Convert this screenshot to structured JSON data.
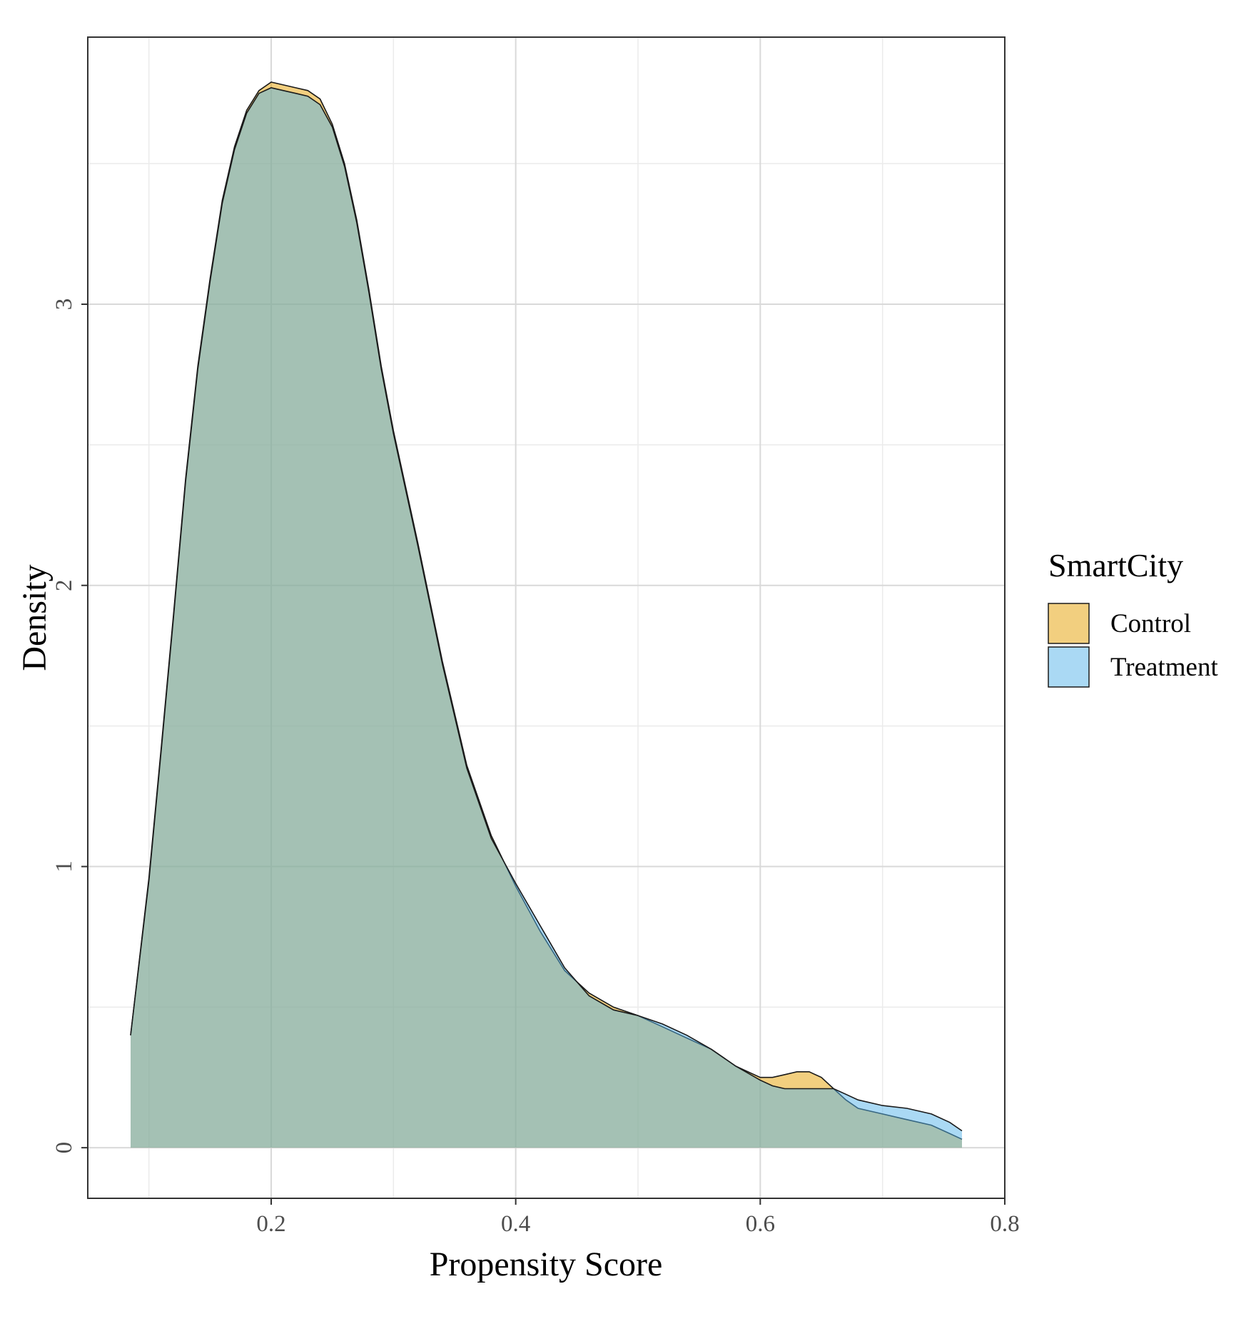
{
  "chart_data": {
    "type": "area",
    "title": "",
    "xlabel": "Propensity Score",
    "ylabel": "Density",
    "xlim": [
      0.05,
      0.8
    ],
    "ylim": [
      -0.18,
      3.95
    ],
    "x_ticks": [
      0.2,
      0.4,
      0.6,
      0.8
    ],
    "x_tick_labels": [
      "0.2",
      "0.4",
      "0.6",
      "0.8"
    ],
    "y_ticks": [
      0,
      1,
      2,
      3
    ],
    "y_tick_labels": [
      "0",
      "1",
      "2",
      "3"
    ],
    "grid": true,
    "legend": {
      "title": "SmartCity",
      "position": "right"
    },
    "series": [
      {
        "name": "Control",
        "color": "#E69F00",
        "x": [
          0.085,
          0.1,
          0.11,
          0.12,
          0.13,
          0.14,
          0.15,
          0.16,
          0.17,
          0.18,
          0.19,
          0.2,
          0.21,
          0.22,
          0.23,
          0.24,
          0.25,
          0.26,
          0.27,
          0.28,
          0.29,
          0.3,
          0.32,
          0.34,
          0.36,
          0.38,
          0.4,
          0.42,
          0.44,
          0.46,
          0.48,
          0.5,
          0.52,
          0.54,
          0.56,
          0.58,
          0.6,
          0.61,
          0.62,
          0.63,
          0.64,
          0.65,
          0.66,
          0.67,
          0.68,
          0.7,
          0.72,
          0.74,
          0.755,
          0.765
        ],
        "y": [
          0.4,
          0.96,
          1.42,
          1.89,
          2.38,
          2.78,
          3.09,
          3.37,
          3.56,
          3.69,
          3.76,
          3.79,
          3.78,
          3.77,
          3.76,
          3.73,
          3.64,
          3.5,
          3.3,
          3.05,
          2.78,
          2.55,
          2.15,
          1.73,
          1.36,
          1.11,
          0.93,
          0.77,
          0.63,
          0.55,
          0.5,
          0.47,
          0.43,
          0.39,
          0.35,
          0.29,
          0.25,
          0.25,
          0.26,
          0.27,
          0.27,
          0.25,
          0.21,
          0.17,
          0.14,
          0.12,
          0.1,
          0.08,
          0.05,
          0.03
        ]
      },
      {
        "name": "Treatment",
        "color": "#56B4E9",
        "x": [
          0.085,
          0.1,
          0.11,
          0.12,
          0.13,
          0.14,
          0.15,
          0.16,
          0.17,
          0.18,
          0.19,
          0.2,
          0.21,
          0.22,
          0.23,
          0.24,
          0.25,
          0.26,
          0.27,
          0.28,
          0.29,
          0.3,
          0.32,
          0.34,
          0.36,
          0.38,
          0.4,
          0.42,
          0.44,
          0.46,
          0.48,
          0.5,
          0.52,
          0.54,
          0.56,
          0.58,
          0.6,
          0.61,
          0.62,
          0.63,
          0.64,
          0.65,
          0.66,
          0.67,
          0.68,
          0.7,
          0.72,
          0.74,
          0.755,
          0.765
        ],
        "y": [
          0.4,
          0.95,
          1.41,
          1.88,
          2.37,
          2.77,
          3.08,
          3.36,
          3.55,
          3.68,
          3.75,
          3.77,
          3.76,
          3.75,
          3.74,
          3.71,
          3.63,
          3.49,
          3.29,
          3.04,
          2.77,
          2.54,
          2.14,
          1.72,
          1.35,
          1.1,
          0.94,
          0.79,
          0.64,
          0.54,
          0.49,
          0.47,
          0.44,
          0.4,
          0.35,
          0.29,
          0.24,
          0.22,
          0.21,
          0.21,
          0.21,
          0.21,
          0.21,
          0.19,
          0.17,
          0.15,
          0.14,
          0.12,
          0.09,
          0.06
        ]
      }
    ]
  }
}
